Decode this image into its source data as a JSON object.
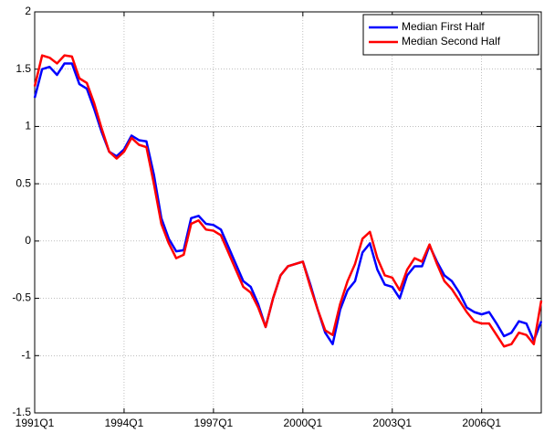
{
  "chart_data": {
    "type": "line",
    "categories": [
      "1991Q1",
      null,
      null,
      null,
      null,
      null,
      null,
      null,
      null,
      null,
      null,
      null,
      "1994Q1",
      null,
      null,
      null,
      null,
      null,
      null,
      null,
      null,
      null,
      null,
      null,
      "1997Q1",
      null,
      null,
      null,
      null,
      null,
      null,
      null,
      null,
      null,
      null,
      null,
      "2000Q1",
      null,
      null,
      null,
      null,
      null,
      null,
      null,
      null,
      null,
      null,
      null,
      "2003Q1",
      null,
      null,
      null,
      null,
      null,
      null,
      null,
      null,
      null,
      null,
      null,
      "2006Q1",
      null,
      null,
      null,
      null,
      null,
      null,
      null,
      null
    ],
    "series": [
      {
        "name": "Median First Half",
        "color": "#0000ff",
        "values": [
          1.25,
          1.5,
          1.52,
          1.45,
          1.55,
          1.55,
          1.37,
          1.33,
          1.15,
          0.95,
          0.78,
          0.74,
          0.8,
          0.92,
          0.88,
          0.87,
          0.58,
          0.2,
          0.02,
          -0.09,
          -0.08,
          0.2,
          0.22,
          0.15,
          0.14,
          0.1,
          -0.05,
          -0.2,
          -0.35,
          -0.4,
          -0.55,
          -0.75,
          -0.5,
          -0.3,
          -0.22,
          -0.2,
          -0.18,
          -0.38,
          -0.6,
          -0.8,
          -0.9,
          -0.6,
          -0.43,
          -0.35,
          -0.1,
          -0.02,
          -0.25,
          -0.38,
          -0.4,
          -0.5,
          -0.3,
          -0.22,
          -0.22,
          -0.04,
          -0.18,
          -0.3,
          -0.35,
          -0.45,
          -0.58,
          -0.62,
          -0.64,
          -0.62,
          -0.72,
          -0.83,
          -0.8,
          -0.7,
          -0.72,
          -0.87,
          -0.7
        ]
      },
      {
        "name": "Median Second Half",
        "color": "#ff0000",
        "values": [
          1.35,
          1.62,
          1.6,
          1.55,
          1.62,
          1.61,
          1.42,
          1.38,
          1.2,
          0.98,
          0.78,
          0.72,
          0.78,
          0.9,
          0.84,
          0.82,
          0.5,
          0.15,
          -0.02,
          -0.15,
          -0.12,
          0.15,
          0.18,
          0.1,
          0.09,
          0.05,
          -0.1,
          -0.25,
          -0.4,
          -0.45,
          -0.58,
          -0.75,
          -0.5,
          -0.3,
          -0.22,
          -0.2,
          -0.18,
          -0.4,
          -0.6,
          -0.78,
          -0.82,
          -0.55,
          -0.35,
          -0.2,
          0.02,
          0.08,
          -0.15,
          -0.3,
          -0.32,
          -0.43,
          -0.25,
          -0.15,
          -0.18,
          -0.03,
          -0.2,
          -0.35,
          -0.42,
          -0.52,
          -0.62,
          -0.7,
          -0.72,
          -0.72,
          -0.82,
          -0.92,
          -0.9,
          -0.8,
          -0.82,
          -0.9,
          -0.52
        ]
      }
    ],
    "ylim": [
      -1.5,
      2
    ],
    "yticks": [
      -1.5,
      -1,
      -0.5,
      0,
      0.5,
      1,
      1.5,
      2
    ],
    "grid": true,
    "legend": "upper right"
  }
}
